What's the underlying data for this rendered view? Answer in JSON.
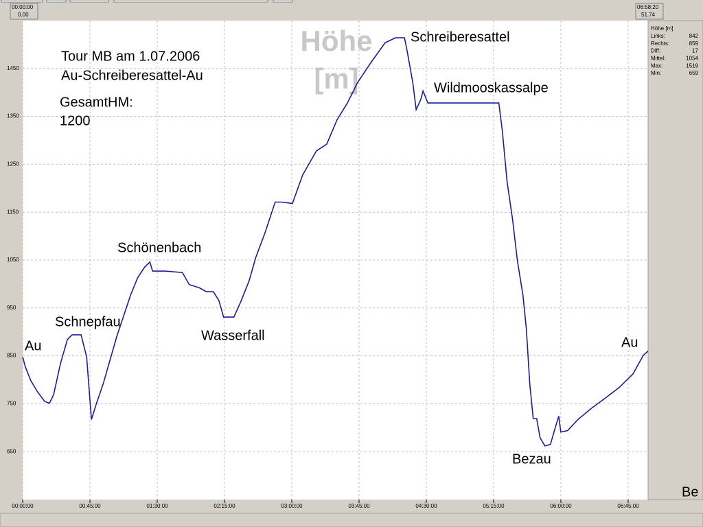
{
  "chart_data": {
    "type": "line",
    "watermark": [
      "Höhe",
      "[m]"
    ],
    "notes": [
      "Tour MB am 1.07.2006",
      "Au-Schreiberesattel-Au",
      "GesamtHM:",
      "1200"
    ],
    "annotations": [
      "Au",
      "Schnepfau",
      "Schönenbach",
      "Wasserfall",
      "Schreiberesattel",
      "Wildmooskassalpe",
      "Bezau",
      "Au"
    ],
    "x": [
      0,
      1.8,
      5.5,
      10.1,
      14.7,
      17.9,
      20.7,
      25.3,
      29.9,
      33.1,
      39.1,
      41,
      42.8,
      46,
      49.2,
      53.8,
      58.4,
      63,
      67.6,
      72.2,
      76.9,
      81.5,
      85.1,
      86.9,
      95.3,
      106.8,
      111.4,
      118.3,
      122.9,
      127.5,
      131.2,
      134.4,
      141.3,
      145.9,
      151.4,
      156,
      162,
      168.9,
      173.5,
      180.4,
      187.3,
      196.5,
      203.4,
      210.3,
      217.2,
      224.1,
      233.3,
      242.5,
      249.4,
      255.4,
      257.2,
      260.9,
      263.2,
      266.4,
      267.8,
      271,
      279.3,
      297.7,
      318.5,
      320.8,
      324,
      327.7,
      330.9,
      334.6,
      336.9,
      339.2,
      341.5,
      343.8,
      346.1,
      349.3,
      353,
      356.7,
      358.6,
      359.9,
      364.5,
      371.4,
      380.6,
      389.8,
      399,
      408.2,
      415.1,
      418.3
    ],
    "series": [
      {
        "name": "Höhe [m]",
        "color": "#1c1c9c",
        "values": [
          848,
          827,
          798,
          774,
          755,
          751,
          769,
          834,
          884,
          894,
          894,
          870,
          848,
          717,
          749,
          791,
          841,
          891,
          934,
          977,
          1013,
          1035,
          1046,
          1027,
          1027,
          1024,
          999,
          992,
          984,
          984,
          966,
          931,
          931,
          963,
          1006,
          1056,
          1106,
          1171,
          1171,
          1168,
          1228,
          1278,
          1292,
          1343,
          1378,
          1421,
          1464,
          1504,
          1514,
          1514,
          1486,
          1421,
          1364,
          1386,
          1403,
          1378,
          1378,
          1378,
          1378,
          1321,
          1214,
          1135,
          1049,
          977,
          906,
          791,
          719,
          719,
          679,
          662,
          665,
          705,
          724,
          691,
          694,
          717,
          741,
          762,
          784,
          812,
          851,
          860
        ]
      }
    ],
    "xlim": [
      0,
      418.33
    ],
    "xticks": [
      {
        "value": 0,
        "label": "00:00:00"
      },
      {
        "value": 45,
        "label": "00:45:00"
      },
      {
        "value": 90,
        "label": "01:30:00"
      },
      {
        "value": 135,
        "label": "02:15:00"
      },
      {
        "value": 180,
        "label": "03:00:00"
      },
      {
        "value": 225,
        "label": "03:45:00"
      },
      {
        "value": 270,
        "label": "04:30:00"
      },
      {
        "value": 315,
        "label": "05:15:00"
      },
      {
        "value": 360,
        "label": "06:00:00"
      },
      {
        "value": 405,
        "label": "06:45:00"
      }
    ],
    "ylim": [
      550,
      1550
    ],
    "yticks": [
      650,
      750,
      850,
      950,
      1050,
      1150,
      1250,
      1350,
      1450
    ],
    "grid": true
  },
  "cursor_left": [
    "00:00:00",
    "0.00"
  ],
  "cursor_right": [
    "06:58:20",
    "51.74"
  ],
  "panel": {
    "title": "Höhe [m]",
    "rows": [
      [
        "Links:",
        "842"
      ],
      [
        "Rechts:",
        "859"
      ],
      [
        "Diff:",
        "17"
      ],
      [
        "Mittel:",
        "1054"
      ],
      [
        "Max:",
        "1519"
      ],
      [
        "Min:",
        "659"
      ]
    ]
  },
  "corner": "Be"
}
